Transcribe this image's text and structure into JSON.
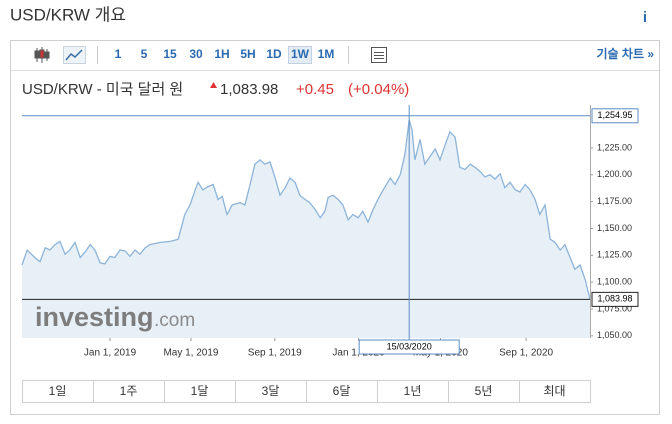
{
  "header": {
    "title": "USD/KRW 개요",
    "info": "i"
  },
  "toolbar": {
    "intervals": [
      "1",
      "5",
      "15",
      "30",
      "1H",
      "5H",
      "1D",
      "1W",
      "1M"
    ],
    "selected": "1W",
    "technical_chart": "기술 차트 »"
  },
  "quote": {
    "name": "USD/KRW - 미국 달러 원",
    "price": "1,083.98",
    "change": "+0.45",
    "change_pct": "(+0.04%)"
  },
  "chart_data": {
    "type": "area",
    "x": [
      0,
      1.1,
      2.7,
      3.8,
      4.9,
      5.9,
      7.0,
      8.0,
      9.1,
      10.1,
      11.2,
      12.3,
      13.3,
      14.4,
      15.4,
      16.5,
      17.5,
      18.6,
      19.6,
      20.7,
      21.8,
      22.8,
      23.9,
      24.9,
      26.0,
      27.0,
      29.2,
      31.3,
      33.0,
      34.4,
      35.5,
      36.6,
      37.2,
      38.2,
      39.3,
      40.4,
      41.4,
      42.3,
      43.3,
      44.4,
      46.1,
      47.1,
      48.2,
      49.2,
      50.3,
      51.3,
      52.4,
      53.5,
      54.5,
      55.6,
      56.6,
      57.7,
      58.7,
      59.8,
      60.8,
      61.9,
      63.0,
      64.0,
      64.7,
      65.7,
      66.8,
      67.8,
      68.9,
      69.9,
      71.0,
      72.0,
      73.1,
      74.2,
      75.2,
      76.3,
      77.8,
      78.8,
      79.9,
      80.9,
      81.8,
      82.4,
      83.0,
      84.1,
      85.1,
      86.2,
      87.3,
      88.3,
      89.4,
      90.4,
      91.5,
      92.5,
      93.6,
      94.7,
      95.7,
      96.8,
      97.8,
      98.9,
      99.9,
      101.0,
      102.0,
      103.1,
      104.2,
      105.2,
      106.3,
      107.3,
      108.4,
      109.4,
      110.5,
      111.6,
      112.6,
      113.7,
      114.7,
      115.8,
      116.8,
      117.9,
      119.0,
      120.0
    ],
    "values": [
      1116,
      1130,
      1123,
      1119,
      1132,
      1130,
      1135,
      1138,
      1126,
      1130,
      1137,
      1123,
      1128,
      1135,
      1130,
      1118,
      1117,
      1124,
      1123,
      1130,
      1129,
      1124,
      1130,
      1126,
      1132,
      1135,
      1137,
      1138,
      1140,
      1163,
      1172,
      1186,
      1193,
      1186,
      1189,
      1191,
      1177,
      1180,
      1163,
      1172,
      1174,
      1172,
      1191,
      1210,
      1214,
      1210,
      1212,
      1197,
      1181,
      1188,
      1197,
      1193,
      1181,
      1177,
      1174,
      1168,
      1160,
      1166,
      1179,
      1181,
      1177,
      1172,
      1158,
      1163,
      1160,
      1166,
      1156,
      1168,
      1177,
      1186,
      1197,
      1191,
      1200,
      1219,
      1251,
      1242,
      1214,
      1233,
      1210,
      1217,
      1224,
      1214,
      1228,
      1240,
      1235,
      1207,
      1205,
      1210,
      1207,
      1203,
      1198,
      1200,
      1196,
      1201,
      1188,
      1193,
      1186,
      1184,
      1191,
      1186,
      1177,
      1163,
      1172,
      1140,
      1137,
      1130,
      1135,
      1123,
      1112,
      1116,
      1102,
      1083.98
    ],
    "xlim": [
      0,
      120
    ],
    "ylim": [
      1048,
      1265
    ],
    "xticks": [
      {
        "value": 18.6,
        "label": "Jan 1, 2019"
      },
      {
        "value": 35.7,
        "label": "May 1, 2019"
      },
      {
        "value": 53.4,
        "label": "Sep 1, 2019"
      },
      {
        "value": 71.1,
        "label": "Jan 1, 2020"
      },
      {
        "value": 88.4,
        "label": "May 1, 2020"
      },
      {
        "value": 106.5,
        "label": "Sep 1, 2020"
      }
    ],
    "yticks": [
      {
        "value": 1050,
        "label": "1,050.00"
      },
      {
        "value": 1075,
        "label": "1,075.00"
      },
      {
        "value": 1100,
        "label": "1,100.00"
      },
      {
        "value": 1125,
        "label": "1,125.00"
      },
      {
        "value": 1150,
        "label": "1,150.00"
      },
      {
        "value": 1175,
        "label": "1,175.00"
      },
      {
        "value": 1200,
        "label": "1,200.00"
      },
      {
        "value": 1225,
        "label": "1,225.00"
      }
    ],
    "color": "#8db4d9",
    "fill_color": "#e7eff7",
    "crosshair": {
      "x": 81.8,
      "x_label": "15/03/2020",
      "value": 1254.95,
      "label": "1,254.95"
    },
    "last": {
      "value": 1083.98,
      "label": "1,083.98"
    }
  },
  "watermark": {
    "brand": "investing",
    "suffix": ".com"
  },
  "ranges": [
    "1일",
    "1주",
    "1달",
    "3달",
    "6달",
    "1년",
    "5년",
    "최대"
  ]
}
